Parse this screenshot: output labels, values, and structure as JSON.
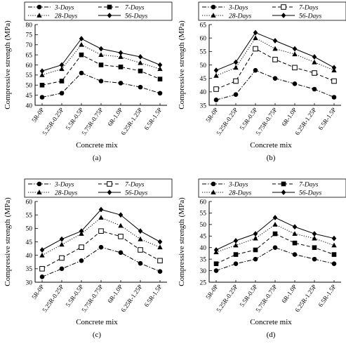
{
  "figure": {
    "axis_style": {
      "line_color": "#000000",
      "marker_color": "#000000"
    }
  },
  "chart_data": [
    {
      "type": "line",
      "caption": "(a)",
      "xlabel": "Concrete mix",
      "ylabel": "Compressive strength (MPa)",
      "categories": [
        "5R-0P",
        "5.25R-0.25P",
        "5.5R-0.5P",
        "5.75R-0.75P",
        "6R-1.0P",
        "6.25R-1.25P",
        "6.5R-1.5P"
      ],
      "ylim": [
        40,
        80
      ],
      "yticks": [
        40,
        45,
        50,
        55,
        60,
        65,
        70,
        75,
        80
      ],
      "grid": false,
      "legend_position": "top",
      "series": [
        {
          "name": "3-Days",
          "marker": "circle",
          "dash": "dashdot",
          "values": [
            44,
            46,
            56,
            52,
            51,
            49,
            46
          ]
        },
        {
          "name": "7-Days",
          "marker": "square",
          "dash": "dashed",
          "values": [
            50,
            52,
            65,
            60,
            59,
            57,
            53
          ]
        },
        {
          "name": "28-Days",
          "marker": "triangle",
          "dash": "dotted",
          "values": [
            55,
            58,
            70,
            65,
            64,
            61,
            58
          ]
        },
        {
          "name": "56-Days",
          "marker": "diamond",
          "dash": "solid",
          "values": [
            57,
            60,
            73,
            68,
            66,
            64,
            60
          ]
        }
      ]
    },
    {
      "type": "line",
      "caption": "(b)",
      "xlabel": "Concrete mix",
      "ylabel": "Compressive strength (MPa)",
      "categories": [
        "5R-0P",
        "5.25R-0.25P",
        "5.5R-0.5P",
        "5.75R-0.75P",
        "6R-1.0P",
        "6.25R-1.25P",
        "6.5R-1.5P"
      ],
      "ylim": [
        35,
        65
      ],
      "yticks": [
        35,
        40,
        45,
        50,
        55,
        60,
        65
      ],
      "grid": false,
      "legend_position": "top",
      "series": [
        {
          "name": "3-Days",
          "marker": "circle",
          "dash": "dashdot",
          "values": [
            37,
            39,
            48,
            45,
            43,
            41,
            38
          ]
        },
        {
          "name": "7-Days",
          "marker": "open-square",
          "dash": "dashed",
          "values": [
            41,
            44,
            56,
            52,
            49,
            47,
            44
          ]
        },
        {
          "name": "28-Days",
          "marker": "triangle",
          "dash": "dotted",
          "values": [
            46,
            49,
            60,
            56,
            54,
            51,
            48
          ]
        },
        {
          "name": "56-Days",
          "marker": "diamond",
          "dash": "solid",
          "values": [
            48,
            51,
            62,
            59,
            56,
            53,
            49
          ]
        }
      ]
    },
    {
      "type": "line",
      "caption": "(c)",
      "xlabel": "Concrete mix",
      "ylabel": "Compressive strength (MPa)",
      "categories": [
        "5R-0P",
        "5.25R-0.25P",
        "5.5R-0.5P",
        "5.75R-0.75P",
        "6R-1.0P",
        "6.25R-1.25P",
        "6.5R-1.5P"
      ],
      "ylim": [
        30,
        60
      ],
      "yticks": [
        30,
        35,
        40,
        45,
        50,
        55,
        60
      ],
      "grid": false,
      "legend_position": "top",
      "series": [
        {
          "name": "3-Days",
          "marker": "circle",
          "dash": "dashdot",
          "values": [
            32,
            35,
            38,
            43,
            41,
            37,
            34
          ]
        },
        {
          "name": "7-Days",
          "marker": "open-square",
          "dash": "dashed",
          "values": [
            35,
            39,
            43,
            49,
            47,
            42,
            38
          ]
        },
        {
          "name": "28-Days",
          "marker": "triangle",
          "dash": "dotted",
          "values": [
            40,
            44,
            48,
            54,
            51,
            46,
            43
          ]
        },
        {
          "name": "56-Days",
          "marker": "diamond",
          "dash": "solid",
          "values": [
            42,
            46,
            49,
            57,
            55,
            49,
            45
          ]
        }
      ]
    },
    {
      "type": "line",
      "caption": "(d)",
      "xlabel": "Concrete mix",
      "ylabel": "Compressive strength (MPa)",
      "categories": [
        "5R-0P",
        "5.25R-0.25P",
        "5.5R-0.5P",
        "5.75R-0.75P",
        "6R-1.0P",
        "6.25R-1.25P",
        "6.5R-1.5P"
      ],
      "ylim": [
        25,
        60
      ],
      "yticks": [
        25,
        30,
        35,
        40,
        45,
        50,
        55,
        60
      ],
      "grid": false,
      "legend_position": "top",
      "series": [
        {
          "name": "3-Days",
          "marker": "circle",
          "dash": "dashdot",
          "values": [
            30,
            33,
            35,
            40,
            37,
            35,
            33
          ]
        },
        {
          "name": "7-Days",
          "marker": "square",
          "dash": "dashed",
          "values": [
            33,
            37,
            39,
            46,
            42,
            40,
            37
          ]
        },
        {
          "name": "28-Days",
          "marker": "triangle",
          "dash": "dotted",
          "values": [
            38,
            41,
            44,
            50,
            46,
            44,
            41
          ]
        },
        {
          "name": "56-Days",
          "marker": "diamond",
          "dash": "solid",
          "values": [
            39,
            43,
            46,
            53,
            49,
            46,
            44
          ]
        }
      ]
    }
  ]
}
